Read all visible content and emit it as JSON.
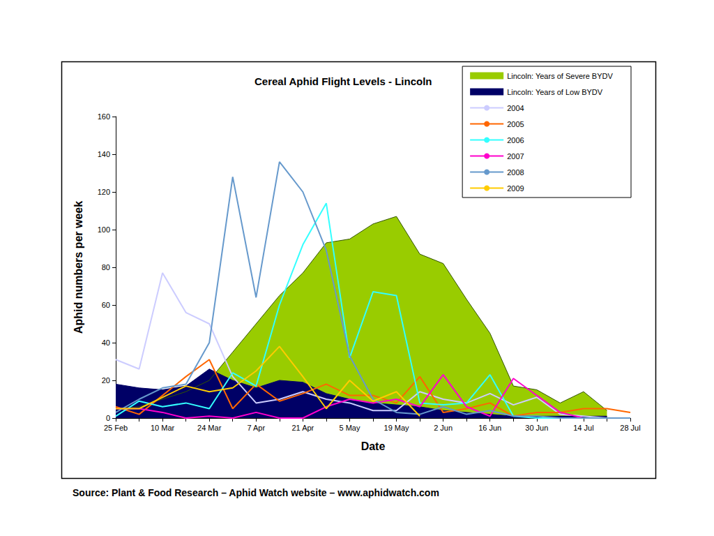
{
  "chart_data": {
    "type": "line",
    "title": "Cereal Aphid Flight Levels - Lincoln",
    "x_label": "Date",
    "y_label": "Aphid numbers per week",
    "source": "Source: Plant & Food Research – Aphid Watch website – www.aphidwatch.com",
    "categories": [
      "25 Feb",
      null,
      "10 Mar",
      null,
      "24 Mar",
      null,
      "7 Apr",
      null,
      "21 Apr",
      null,
      "5 May",
      null,
      "19 May",
      null,
      "2 Jun",
      null,
      "16 Jun",
      null,
      "30 Jun",
      null,
      "14 Jul",
      null,
      "28 Jul"
    ],
    "series": [
      {
        "name": "Lincoln: Years of Severe BYDV",
        "type": "area",
        "color": "#99cc00",
        "values": [
          5,
          6,
          10,
          14,
          20,
          35,
          50,
          65,
          77,
          93,
          95,
          103,
          107,
          87,
          82,
          63,
          45,
          17,
          15,
          8,
          14,
          4,
          null
        ]
      },
      {
        "name": "Lincoln: Years of Low BYDV",
        "type": "area",
        "color": "#000066",
        "values": [
          18,
          16,
          15,
          17,
          26,
          20,
          16,
          20,
          19,
          13,
          10,
          8,
          7,
          6,
          4,
          3,
          2,
          1,
          1,
          1,
          1,
          1,
          null
        ]
      },
      {
        "name": "2004",
        "type": "line",
        "color": "#ccccff",
        "values": [
          31,
          26,
          77,
          56,
          50,
          22,
          8,
          10,
          14,
          10,
          8,
          4,
          4,
          14,
          10,
          8,
          13,
          7,
          11,
          2,
          1,
          0,
          0
        ]
      },
      {
        "name": "2005",
        "type": "line",
        "color": "#ff6600",
        "values": [
          6,
          2,
          12,
          22,
          31,
          5,
          18,
          9,
          13,
          18,
          12,
          12,
          8,
          22,
          3,
          5,
          8,
          1,
          3,
          3,
          5,
          5,
          3
        ]
      },
      {
        "name": "2006",
        "type": "line",
        "color": "#33ffff",
        "values": [
          1,
          9,
          6,
          8,
          5,
          24,
          17,
          60,
          92,
          114,
          32,
          67,
          65,
          8,
          7,
          8,
          23,
          1,
          0,
          0,
          0,
          0,
          0
        ]
      },
      {
        "name": "2007",
        "type": "line",
        "color": "#ff00cc",
        "values": [
          5,
          5,
          3,
          0,
          1,
          0,
          3,
          0,
          0,
          6,
          10,
          8,
          10,
          6,
          23,
          6,
          1,
          21,
          12,
          3,
          0,
          0,
          0
        ]
      },
      {
        "name": "2008",
        "type": "line",
        "color": "#6699cc",
        "values": [
          3,
          10,
          16,
          18,
          40,
          128,
          64,
          136,
          120,
          89,
          33,
          10,
          3,
          2,
          6,
          2,
          4,
          1,
          1,
          0,
          0,
          0,
          0
        ]
      },
      {
        "name": "2009",
        "type": "line",
        "color": "#ffcc00",
        "values": [
          5,
          5,
          11,
          17,
          14,
          16,
          25,
          38,
          22,
          5,
          20,
          9,
          14,
          1,
          null,
          null,
          null,
          null,
          null,
          null,
          null,
          null,
          null
        ]
      }
    ],
    "ylim": [
      0,
      160
    ],
    "yticks": [
      0,
      20,
      40,
      60,
      80,
      100,
      120,
      140,
      160
    ],
    "grid": false,
    "legend": "top-right"
  }
}
